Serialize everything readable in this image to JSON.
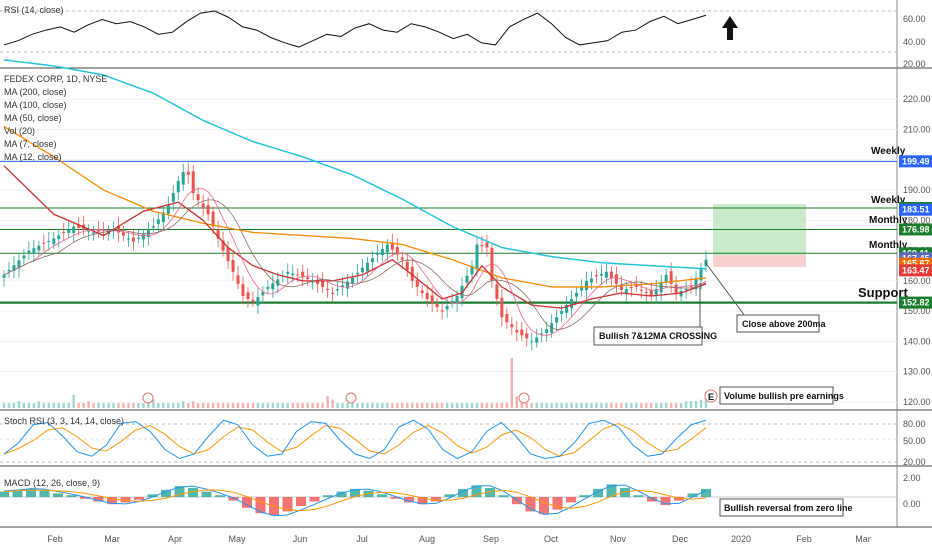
{
  "chart_data": {
    "type": "line",
    "title": "FEDEX CORP, 1D, NYSE",
    "legend": [
      "MA (200, close)",
      "MA (100, close)",
      "MA (50, close)",
      "Vol (20)",
      "MA (7, close)",
      "MA (12, close)"
    ],
    "x_labels": [
      "Feb",
      "Mar",
      "Apr",
      "May",
      "Jun",
      "Jul",
      "Aug",
      "Sep",
      "Oct",
      "Nov",
      "Dec",
      "2020",
      "Feb",
      "Mar"
    ],
    "price_ticks": [
      "220.00",
      "210.00",
      "200.00",
      "190.00",
      "180.00",
      "170.00",
      "160.00",
      "150.00",
      "140.00",
      "130.00",
      "120.00"
    ],
    "price_ylim": [
      118,
      229
    ],
    "price_keypoints": [
      [
        0,
        162
      ],
      [
        5,
        170
      ],
      [
        10,
        174
      ],
      [
        14,
        178
      ],
      [
        18,
        176
      ],
      [
        22,
        177
      ],
      [
        26,
        173
      ],
      [
        30,
        178
      ],
      [
        33,
        185
      ],
      [
        35,
        193
      ],
      [
        36,
        196
      ],
      [
        37,
        195
      ],
      [
        38,
        189
      ],
      [
        41,
        182
      ],
      [
        44,
        170
      ],
      [
        46,
        163
      ],
      [
        48,
        155
      ],
      [
        50,
        153
      ],
      [
        53,
        158
      ],
      [
        57,
        163
      ],
      [
        62,
        160
      ],
      [
        66,
        156
      ],
      [
        70,
        161
      ],
      [
        73,
        166
      ],
      [
        77,
        172
      ],
      [
        80,
        167
      ],
      [
        82,
        160
      ],
      [
        85,
        154
      ],
      [
        88,
        150
      ],
      [
        91,
        155
      ],
      [
        94,
        165
      ],
      [
        95,
        172
      ],
      [
        97,
        171
      ],
      [
        98,
        160
      ],
      [
        100,
        148
      ],
      [
        103,
        143
      ],
      [
        106,
        140
      ],
      [
        109,
        144
      ],
      [
        113,
        152
      ],
      [
        117,
        160
      ],
      [
        121,
        163
      ],
      [
        124,
        157
      ],
      [
        127,
        158
      ],
      [
        130,
        155
      ],
      [
        133,
        162
      ],
      [
        135,
        156
      ],
      [
        138,
        158
      ],
      [
        141,
        167
      ]
    ],
    "ma200": [
      [
        0,
        233
      ],
      [
        10,
        231
      ],
      [
        20,
        228
      ],
      [
        30,
        222
      ],
      [
        40,
        213
      ],
      [
        50,
        206
      ],
      [
        60,
        201
      ],
      [
        70,
        195
      ],
      [
        80,
        187
      ],
      [
        90,
        178
      ],
      [
        100,
        171
      ],
      [
        110,
        168
      ],
      [
        120,
        166
      ],
      [
        130,
        165
      ],
      [
        141,
        164
      ]
    ],
    "ma100": [
      [
        0,
        211
      ],
      [
        10,
        201
      ],
      [
        20,
        190
      ],
      [
        30,
        183
      ],
      [
        40,
        179
      ],
      [
        50,
        176
      ],
      [
        60,
        175
      ],
      [
        70,
        174
      ],
      [
        80,
        172
      ],
      [
        90,
        167
      ],
      [
        100,
        161
      ],
      [
        110,
        158
      ],
      [
        120,
        158
      ],
      [
        130,
        159
      ],
      [
        141,
        161
      ]
    ],
    "ma50": [
      [
        0,
        198
      ],
      [
        10,
        182
      ],
      [
        20,
        175
      ],
      [
        28,
        183
      ],
      [
        35,
        186
      ],
      [
        40,
        180
      ],
      [
        45,
        171
      ],
      [
        50,
        165
      ],
      [
        55,
        162
      ],
      [
        60,
        160
      ],
      [
        66,
        160
      ],
      [
        72,
        162
      ],
      [
        78,
        167
      ],
      [
        82,
        162
      ],
      [
        88,
        154
      ],
      [
        92,
        156
      ],
      [
        96,
        165
      ],
      [
        100,
        158
      ],
      [
        106,
        152
      ],
      [
        112,
        151
      ],
      [
        118,
        154
      ],
      [
        124,
        156
      ],
      [
        130,
        155
      ],
      [
        136,
        156
      ],
      [
        141,
        159
      ]
    ],
    "volume": [
      3,
      3,
      3,
      4,
      3,
      3,
      3,
      4,
      3,
      3,
      3,
      3,
      3,
      3,
      8,
      3,
      3,
      4,
      3,
      3,
      3,
      3,
      3,
      3,
      3,
      3,
      3,
      3,
      3,
      4,
      5,
      3,
      3,
      3,
      3,
      3,
      4,
      3,
      4,
      3,
      3,
      3,
      3,
      3,
      3,
      3,
      3,
      3,
      3,
      3,
      3,
      3,
      3,
      3,
      3,
      3,
      3,
      3,
      3,
      3,
      3,
      3,
      3,
      3,
      3,
      7,
      5,
      3,
      3,
      3,
      3,
      3,
      3,
      3,
      3,
      3,
      3,
      3,
      3,
      3,
      3,
      3,
      3,
      3,
      3,
      3,
      3,
      3,
      3,
      3,
      3,
      3,
      3,
      3,
      3,
      3,
      3,
      3,
      3,
      3,
      3,
      3,
      30,
      7,
      6,
      3,
      3,
      3,
      3,
      3,
      3,
      3,
      3,
      3,
      3,
      3,
      3,
      3,
      3,
      3,
      3,
      3,
      3,
      3,
      3,
      3,
      3,
      3,
      3,
      3,
      3,
      3,
      3,
      3,
      3,
      3,
      3,
      4,
      4,
      4,
      5,
      6
    ],
    "levels": [
      {
        "value": 199.49,
        "label": "199.49",
        "color": "#2962ff",
        "name": "Weekly"
      },
      {
        "value": 184.07,
        "label": "184.07",
        "color": "#1b7e2e",
        "name": "Weekly"
      },
      {
        "value": 183.51,
        "label": "183.51",
        "color": "#2962ff",
        "name": ""
      },
      {
        "value": 176.98,
        "label": "176.98",
        "color": "#1b7e2e",
        "name": "Monthly"
      },
      {
        "value": 169.11,
        "label": "169.11",
        "color": "#1b7e2e",
        "name": "Monthly"
      },
      {
        "value": 167.45,
        "label": "167.45",
        "color": "#5c6bc0",
        "name": ""
      },
      {
        "value": 165.67,
        "label": "165.67",
        "color": "#ef6c00",
        "name": ""
      },
      {
        "value": 163.47,
        "label": "163.47",
        "color": "#e53935",
        "name": ""
      },
      {
        "value": 152.82,
        "label": "152.82",
        "color": "#1b7e2e",
        "name": "Support"
      }
    ],
    "rsi": {
      "label": "RSI (14, close)",
      "ticks": [
        "60.00",
        "40.00",
        "20.00"
      ],
      "values": [
        38,
        42,
        48,
        52,
        55,
        50,
        57,
        62,
        58,
        60,
        55,
        48,
        50,
        60,
        68,
        70,
        64,
        55,
        52,
        45,
        40,
        36,
        42,
        48,
        46,
        54,
        58,
        52,
        50,
        58,
        55,
        50,
        44,
        48,
        40,
        38,
        55,
        62,
        68,
        58,
        45,
        38,
        40,
        42,
        50,
        52,
        60,
        65,
        58,
        62,
        66
      ]
    },
    "stoch": {
      "label": "Stoch RSI (3, 3, 14, 14, close)",
      "ticks": [
        "80.00",
        "50.00",
        "20.00"
      ],
      "values": [
        20,
        45,
        85,
        90,
        60,
        25,
        15,
        40,
        88,
        92,
        70,
        30,
        10,
        20,
        60,
        95,
        85,
        40,
        15,
        20,
        70,
        92,
        88,
        50,
        20,
        10,
        30,
        80,
        95,
        75,
        30,
        10,
        25,
        70,
        90,
        60,
        20,
        10,
        15,
        45,
        88,
        95,
        80,
        40,
        15,
        20,
        55,
        85,
        95
      ]
    },
    "macd": {
      "label": "MACD (12, 26, close, 9)",
      "ticks": [
        "2.00",
        "0.00"
      ],
      "hist": [
        0.6,
        0.8,
        0.9,
        0.7,
        0.4,
        0.2,
        -0.2,
        -0.5,
        -0.8,
        -0.6,
        -0.3,
        0.3,
        0.8,
        1.2,
        1.0,
        0.6,
        0.2,
        -0.4,
        -1.2,
        -1.8,
        -2.0,
        -1.6,
        -1.0,
        -0.5,
        0.2,
        0.6,
        0.9,
        0.7,
        0.3,
        -0.2,
        -0.6,
        -0.8,
        -0.5,
        0.3,
        0.9,
        1.3,
        1.0,
        0.2,
        -0.8,
        -1.6,
        -1.9,
        -1.4,
        -0.6,
        0.2,
        0.9,
        1.4,
        1.0,
        0.2,
        -0.5,
        -0.9,
        -0.4,
        0.4,
        0.9
      ]
    }
  },
  "annotations": {
    "weekly_top": "Weekly",
    "weekly_mid": "Weekly",
    "monthly_1": "Monthly",
    "monthly_2": "Monthly",
    "support": "Support",
    "close_above": "Close above 200ma",
    "crossing": "Bullish 7&12MA CROSSING",
    "volume_note": "Volume bullish pre earnings",
    "macd_note": "Bullish reversal from zero line",
    "earnings_marker": "E"
  },
  "colors": {
    "up": "#26a69a",
    "down": "#ef5350",
    "ma200": "#26c6da",
    "ma100": "#fb8c00",
    "ma50": "#d32f2f",
    "ma7": "#f06292",
    "ma12": "#8d6e63",
    "rsi": "#111111",
    "stoch_k": "#2196f3",
    "stoch_d": "#ff9800",
    "support": "#1b7e2e",
    "target_zone": "#b7e4b9",
    "stop_zone": "#f8c8c8"
  }
}
